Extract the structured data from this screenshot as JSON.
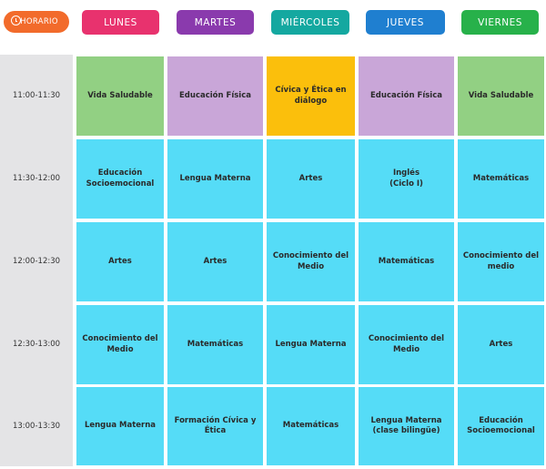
{
  "header": {
    "horario_label": "HORARIO",
    "days": [
      "LUNES",
      "MARTES",
      "MIÉRCOLES",
      "JUEVES",
      "VIERNES"
    ]
  },
  "colors": {
    "horario": "#f26b2b",
    "lunes": "#e8326e",
    "martes": "#8a3aad",
    "miercoles": "#14a8a0",
    "jueves": "#1f7fd0",
    "viernes": "#27b14a",
    "green_cell": "#92d083",
    "purple_cell": "#c9a6d8",
    "yellow_cell": "#fbbf0c",
    "cyan_cell": "#55dcf7",
    "time_column": "#e4e4e6"
  },
  "schedule": [
    {
      "time": "11:00-11:30",
      "cells": [
        "Vida Saludable",
        "Educación Física",
        "Cívica y Ética en diálogo",
        "Educación Física",
        "Vida Saludable"
      ]
    },
    {
      "time": "11:30-12:00",
      "cells": [
        "Educación Socioemocional",
        "Lengua Materna",
        "Artes",
        "Inglés\n(Ciclo I)",
        "Matemáticas"
      ]
    },
    {
      "time": "12:00-12:30",
      "cells": [
        "Artes",
        "Artes",
        "Conocimiento del Medio",
        "Matemáticas",
        "Conocimiento del medio"
      ]
    },
    {
      "time": "12:30-13:00",
      "cells": [
        "Conocimiento del Medio",
        "Matemáticas",
        "Lengua Materna",
        "Conocimiento del Medio",
        "Artes"
      ]
    },
    {
      "time": "13:00-13:30",
      "cells": [
        "Lengua Materna",
        "Formación Cívica y Ética",
        "Matemáticas",
        "Lengua Materna\n(clase bilingüe)",
        "Educación Socioemocional"
      ]
    }
  ]
}
